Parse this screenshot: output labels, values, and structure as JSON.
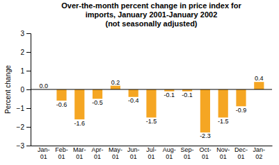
{
  "chart_data": {
    "type": "bar",
    "title": "Over-the-month percent change in price index for\nimports, January 2001-January 2002\n(not seasonally adjusted)",
    "y_label": "Percent change",
    "categories": [
      "Jan-\n01",
      "Feb-\n01",
      "Mar-\n01",
      "Apr-\n01",
      "May-\n01",
      "Jun-\n01",
      "Jul-\n01",
      "Aug-\n01",
      "Sep-\n01",
      "Oct-\n01",
      "Nov-\n01",
      "Dec-\n01",
      "Jan-\n02"
    ],
    "values": [
      0.0,
      -0.6,
      -1.6,
      -0.5,
      0.2,
      -0.4,
      -1.5,
      -0.1,
      -0.1,
      -2.3,
      -1.5,
      -0.9,
      0.4
    ],
    "value_labels": [
      "0.0",
      "-0.6",
      "-1.6",
      "-0.5",
      "0.2",
      "-0.4",
      "-1.5",
      "-0.1",
      "-0.1",
      "-2.3",
      "-1.5",
      "-0.9",
      "0.4"
    ],
    "color": "#F5A623",
    "ylim": [
      -3,
      3
    ],
    "yticks": [
      {
        "value": -3,
        "label": "−3"
      },
      {
        "value": -2,
        "label": "−2"
      },
      {
        "value": -1,
        "label": "−1"
      },
      0,
      1,
      2,
      3
    ],
    "grid": false,
    "data_labels": true
  }
}
